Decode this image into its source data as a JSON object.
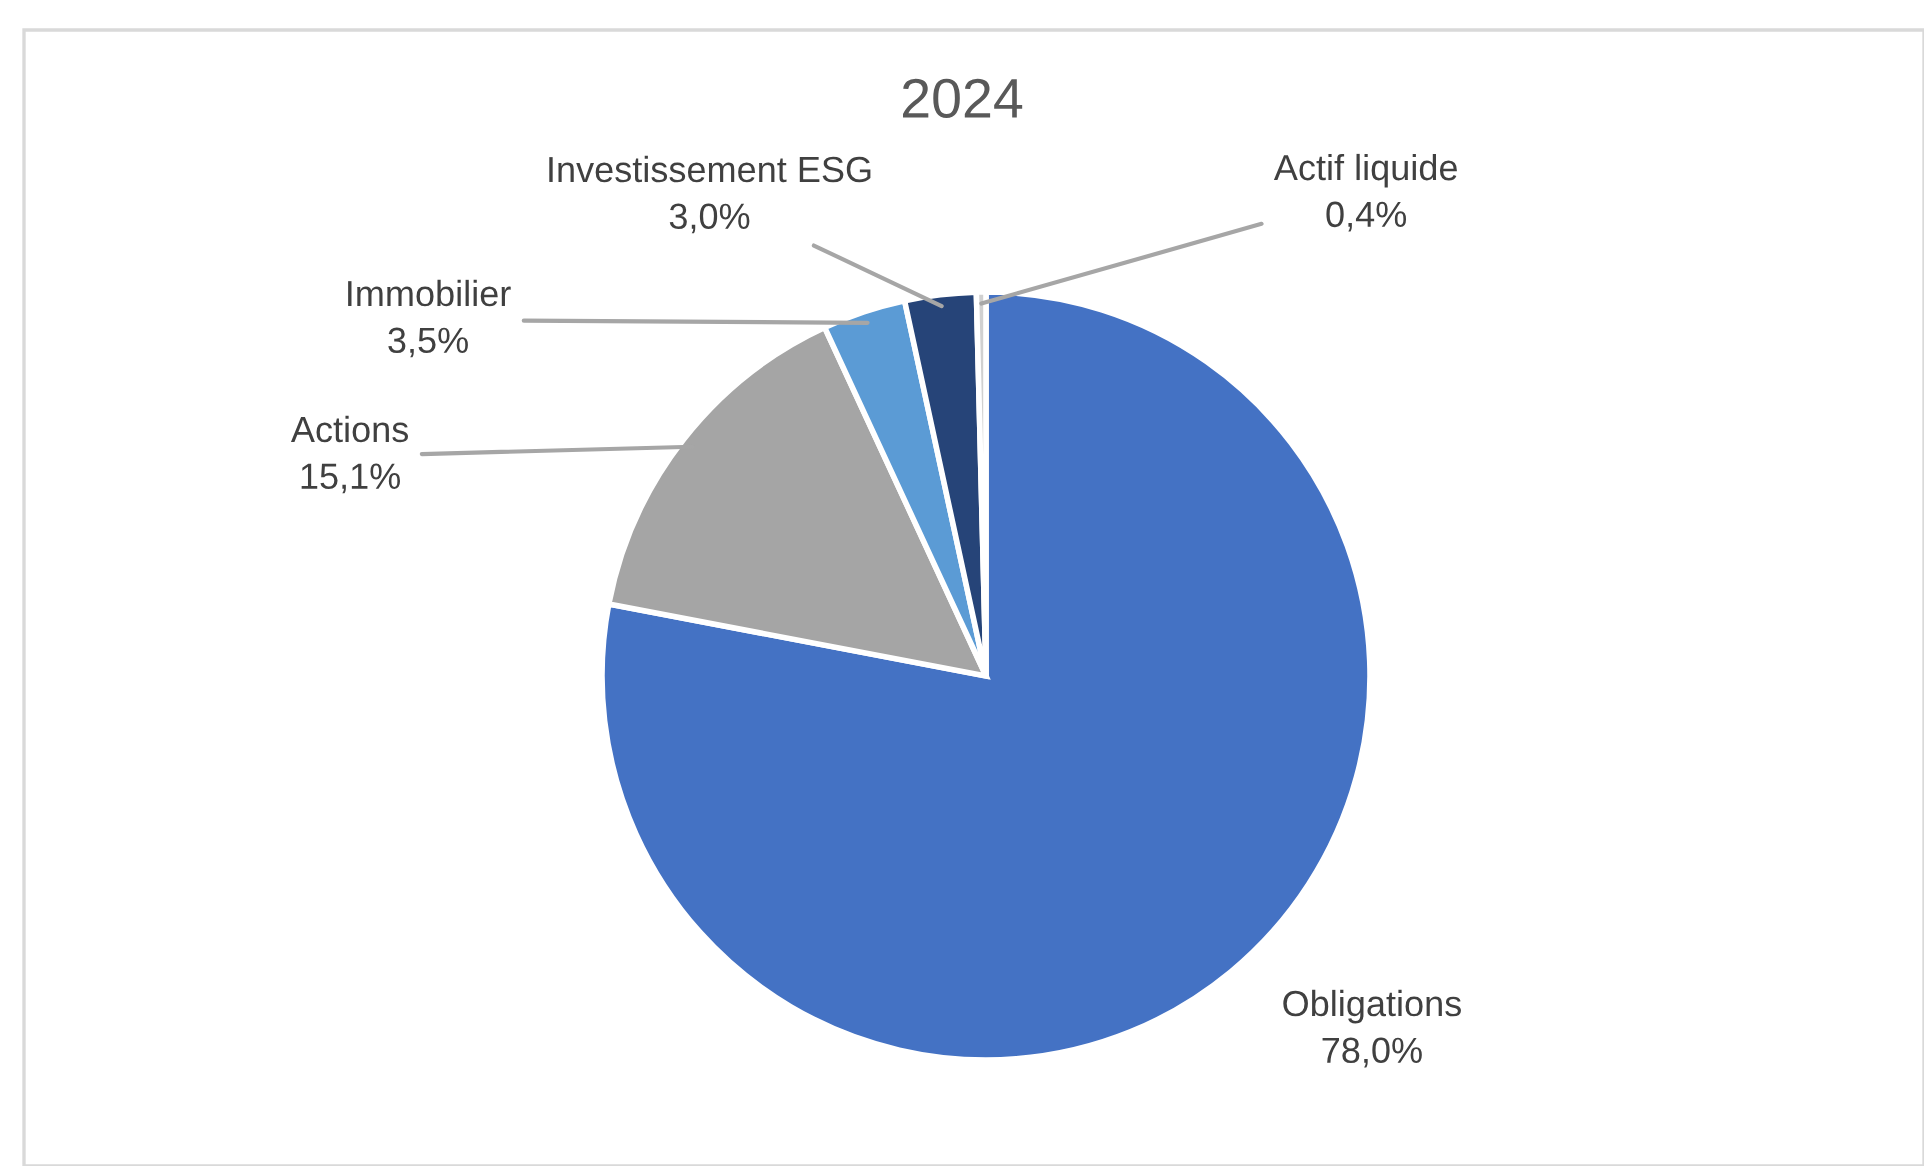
{
  "chart_data": {
    "type": "pie",
    "title": "2024",
    "categories": [
      "Obligations",
      "Actions",
      "Immobilier",
      "Investissement ESG",
      "Actif liquide"
    ],
    "values": [
      78.0,
      15.1,
      3.5,
      3.0,
      0.4
    ],
    "colors": [
      "#4472c4",
      "#a5a5a5",
      "#5b9bd5",
      "#264478",
      "#d0d0d0"
    ],
    "value_labels": [
      "78,0%",
      "15,1%",
      "3,5%",
      "3,0%",
      "0,4%"
    ],
    "legend": false
  }
}
